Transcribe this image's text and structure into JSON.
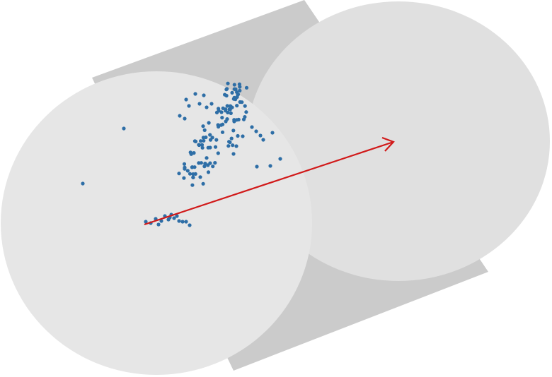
{
  "colors": {
    "background": "#ffffff",
    "cylinder_side": "#cbcbcb",
    "near_face": "#e6e6e6",
    "far_face": "#e0e0e0",
    "points": "#2e6ea6",
    "arrow": "#d11919"
  },
  "cylinder": {
    "shape": "cylinder-3d",
    "faces": 2
  },
  "arrow": {
    "color": "#d11919",
    "direction": "upper-right"
  },
  "point_cloud": {
    "color": "#2e6ea6",
    "count": 152,
    "clusters": [
      "upper-cluster",
      "lower-cluster",
      "outliers"
    ]
  }
}
